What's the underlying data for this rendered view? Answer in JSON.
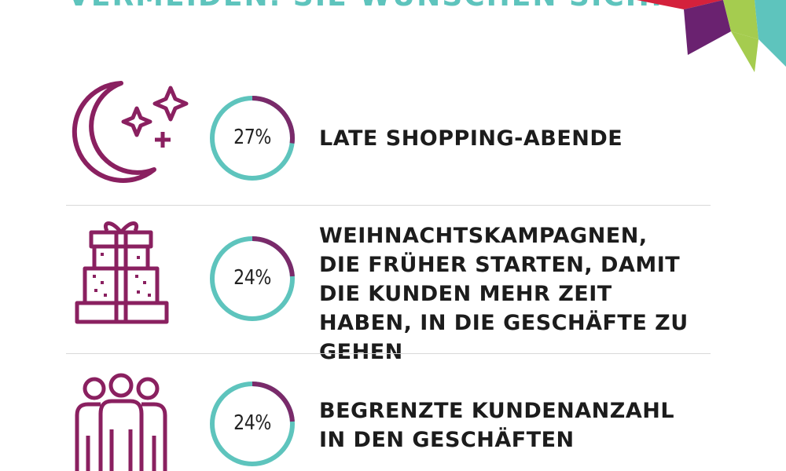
{
  "header": {
    "text": "VERMEIDEN. SIE WÜNSCHEN SICH:"
  },
  "colors": {
    "accent_teal": "#5ec4bd",
    "accent_purple": "#8a2060",
    "ring_purple": "#7a2a6a",
    "deco_red": "#d4213c",
    "deco_purple": "#6a2270",
    "deco_green": "#a5cc4f",
    "deco_teal": "#5ec4bd"
  },
  "items": [
    {
      "icon": "moon-stars-icon",
      "percent": "27%",
      "fraction": 0.27,
      "text": "LATE SHOPPING-ABENDE"
    },
    {
      "icon": "gift-boxes-icon",
      "percent": "24%",
      "fraction": 0.24,
      "text": "WEIHNACHTSKAMPAGNEN, DIE FRÜHER STARTEN, DAMIT DIE KUNDEN MEHR ZEIT HABEN, IN DIE GESCHÄFTE ZU GEHEN"
    },
    {
      "icon": "people-group-icon",
      "percent": "24%",
      "fraction": 0.24,
      "text": "BEGRENZTE KUNDENANZAHL IN DEN GESCHÄFTEN"
    }
  ]
}
